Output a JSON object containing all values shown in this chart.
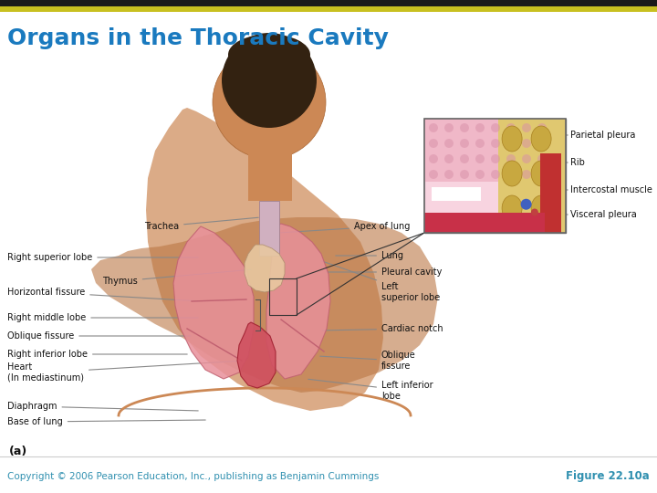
{
  "title": "Organs in the Thoracic Cavity",
  "title_color": "#1a7abf",
  "title_fontsize": 18,
  "bg_color": "#ffffff",
  "top_bar1_color": "#1a1a1a",
  "top_bar2_color": "#c8c020",
  "footer_left": "Copyright © 2006 Pearson Education, Inc., publishing as Benjamin Cummings",
  "footer_right": "Figure 22.10a",
  "footer_color": "#3090b0",
  "footer_fontsize": 7.5,
  "panel_label": "(a)",
  "label_fontsize": 7,
  "line_color": "#888888",
  "skin_color": "#d4956a",
  "lung_color": "#e8909a",
  "lung_edge": "#c06070",
  "heart_color": "#b03040",
  "trachea_color": "#c0a0b0",
  "bg_body_color": "#f0c8a0",
  "inset_bg": "#f8e8e0",
  "inset_pink": "#e8b0c0",
  "inset_rib": "#e0c870",
  "inset_red": "#c03030",
  "inset_edge": "#666666"
}
